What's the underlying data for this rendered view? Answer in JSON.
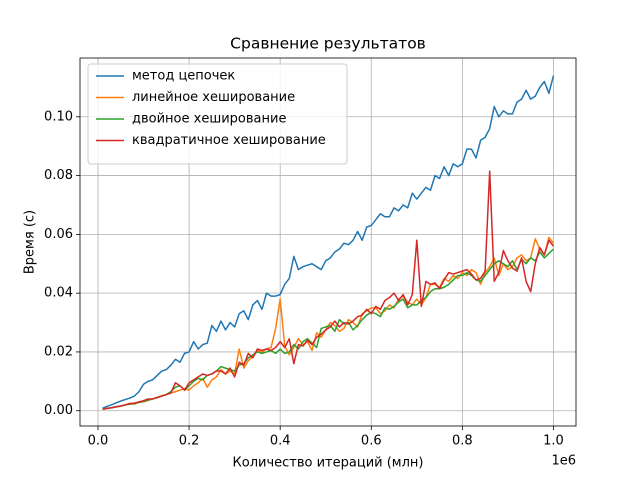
{
  "chart_data": {
    "type": "line",
    "title": "Сравнение результатов",
    "xlabel": "Количество итераций (млн)",
    "ylabel": "Время (с)",
    "x_offset_label": "1e6",
    "x": [
      10000,
      20000,
      30000,
      40000,
      50000,
      60000,
      70000,
      80000,
      90000,
      100000,
      110000,
      120000,
      130000,
      140000,
      150000,
      160000,
      170000,
      180000,
      190000,
      200000,
      210000,
      220000,
      230000,
      240000,
      250000,
      260000,
      270000,
      280000,
      290000,
      300000,
      310000,
      320000,
      330000,
      340000,
      350000,
      360000,
      370000,
      380000,
      390000,
      400000,
      410000,
      420000,
      430000,
      440000,
      450000,
      460000,
      470000,
      480000,
      490000,
      500000,
      510000,
      520000,
      530000,
      540000,
      550000,
      560000,
      570000,
      580000,
      590000,
      600000,
      610000,
      620000,
      630000,
      640000,
      650000,
      660000,
      670000,
      680000,
      690000,
      700000,
      710000,
      720000,
      730000,
      740000,
      750000,
      760000,
      770000,
      780000,
      790000,
      800000,
      810000,
      820000,
      830000,
      840000,
      850000,
      860000,
      870000,
      880000,
      890000,
      900000,
      910000,
      920000,
      930000,
      940000,
      950000,
      960000,
      970000,
      980000,
      990000,
      1000000
    ],
    "series": [
      {
        "name": "метод цепочек",
        "color": "#1f77b4",
        "values": [
          0.0008,
          0.0015,
          0.002,
          0.0027,
          0.0033,
          0.0038,
          0.0043,
          0.005,
          0.0065,
          0.009,
          0.01,
          0.0105,
          0.012,
          0.0135,
          0.014,
          0.0155,
          0.0175,
          0.0165,
          0.0195,
          0.02,
          0.0235,
          0.021,
          0.0225,
          0.023,
          0.029,
          0.027,
          0.0305,
          0.0275,
          0.03,
          0.0285,
          0.033,
          0.034,
          0.031,
          0.036,
          0.0375,
          0.0345,
          0.04,
          0.039,
          0.039,
          0.0395,
          0.043,
          0.045,
          0.0525,
          0.048,
          0.049,
          0.0495,
          0.05,
          0.049,
          0.048,
          0.051,
          0.052,
          0.054,
          0.055,
          0.057,
          0.0565,
          0.058,
          0.061,
          0.058,
          0.0625,
          0.063,
          0.065,
          0.067,
          0.066,
          0.066,
          0.069,
          0.068,
          0.07,
          0.069,
          0.074,
          0.072,
          0.074,
          0.076,
          0.075,
          0.08,
          0.079,
          0.083,
          0.08,
          0.084,
          0.083,
          0.084,
          0.089,
          0.089,
          0.086,
          0.092,
          0.093,
          0.096,
          0.1035,
          0.1,
          0.102,
          0.101,
          0.101,
          0.105,
          0.106,
          0.109,
          0.106,
          0.107,
          0.11,
          0.112,
          0.108,
          0.114
        ]
      },
      {
        "name": "линейное хеширование",
        "color": "#ff7f0e",
        "values": [
          0.0005,
          0.0008,
          0.001,
          0.0013,
          0.0015,
          0.002,
          0.0025,
          0.0022,
          0.003,
          0.003,
          0.0035,
          0.004,
          0.0045,
          0.005,
          0.0055,
          0.006,
          0.0065,
          0.007,
          0.0075,
          0.007,
          0.0085,
          0.0095,
          0.011,
          0.008,
          0.0105,
          0.0115,
          0.014,
          0.0125,
          0.0135,
          0.0125,
          0.021,
          0.0145,
          0.017,
          0.0185,
          0.0205,
          0.02,
          0.021,
          0.0215,
          0.028,
          0.038,
          0.022,
          0.019,
          0.0215,
          0.0245,
          0.0225,
          0.0235,
          0.0205,
          0.0265,
          0.025,
          0.0275,
          0.03,
          0.029,
          0.027,
          0.028,
          0.031,
          0.03,
          0.0285,
          0.033,
          0.034,
          0.035,
          0.035,
          0.033,
          0.034,
          0.036,
          0.035,
          0.038,
          0.039,
          0.037,
          0.036,
          0.038,
          0.036,
          0.0385,
          0.043,
          0.043,
          0.042,
          0.045,
          0.044,
          0.046,
          0.045,
          0.047,
          0.046,
          0.048,
          0.047,
          0.043,
          0.047,
          0.049,
          0.052,
          0.046,
          0.05,
          0.048,
          0.049,
          0.052,
          0.053,
          0.051,
          0.052,
          0.0585,
          0.055,
          0.053,
          0.059,
          0.057
        ]
      },
      {
        "name": "двойное хеширование",
        "color": "#2ca02c",
        "values": [
          0.0005,
          0.0008,
          0.001,
          0.0013,
          0.0016,
          0.002,
          0.0022,
          0.0025,
          0.0028,
          0.0032,
          0.0036,
          0.004,
          0.0045,
          0.005,
          0.0055,
          0.0065,
          0.008,
          0.0085,
          0.007,
          0.0085,
          0.01,
          0.011,
          0.0105,
          0.012,
          0.0125,
          0.0135,
          0.015,
          0.0145,
          0.014,
          0.0135,
          0.0155,
          0.016,
          0.018,
          0.019,
          0.02,
          0.0195,
          0.02,
          0.0205,
          0.0195,
          0.021,
          0.0195,
          0.02,
          0.0225,
          0.021,
          0.0235,
          0.0245,
          0.023,
          0.0215,
          0.028,
          0.0285,
          0.029,
          0.027,
          0.031,
          0.0295,
          0.03,
          0.0275,
          0.029,
          0.031,
          0.0325,
          0.0335,
          0.033,
          0.032,
          0.035,
          0.0345,
          0.0355,
          0.037,
          0.038,
          0.035,
          0.036,
          0.036,
          0.0375,
          0.0385,
          0.0405,
          0.0415,
          0.0415,
          0.042,
          0.043,
          0.0445,
          0.046,
          0.046,
          0.047,
          0.046,
          0.0445,
          0.044,
          0.046,
          0.048,
          0.05,
          0.051,
          0.05,
          0.049,
          0.051,
          0.048,
          0.0515,
          0.05,
          0.052,
          0.051,
          0.054,
          0.052,
          0.0535,
          0.055
        ]
      },
      {
        "name": "квадратичное хеширование",
        "color": "#d62728",
        "values": [
          0.0005,
          0.0008,
          0.001,
          0.0014,
          0.0016,
          0.002,
          0.0024,
          0.0026,
          0.003,
          0.0034,
          0.004,
          0.004,
          0.0045,
          0.005,
          0.0055,
          0.006,
          0.0095,
          0.0085,
          0.007,
          0.0095,
          0.0105,
          0.0115,
          0.0125,
          0.012,
          0.0125,
          0.0135,
          0.0135,
          0.0125,
          0.0145,
          0.0115,
          0.0165,
          0.0155,
          0.0195,
          0.018,
          0.021,
          0.0205,
          0.021,
          0.0205,
          0.0215,
          0.0235,
          0.0215,
          0.0245,
          0.016,
          0.0225,
          0.022,
          0.024,
          0.0225,
          0.025,
          0.026,
          0.0275,
          0.0285,
          0.0305,
          0.0285,
          0.03,
          0.0295,
          0.0305,
          0.032,
          0.0325,
          0.0345,
          0.033,
          0.0355,
          0.0345,
          0.0375,
          0.0385,
          0.04,
          0.0375,
          0.0395,
          0.036,
          0.0395,
          0.058,
          0.0355,
          0.044,
          0.043,
          0.0435,
          0.0415,
          0.0445,
          0.047,
          0.0465,
          0.047,
          0.0475,
          0.048,
          0.0465,
          0.0445,
          0.045,
          0.0475,
          0.0815,
          0.044,
          0.047,
          0.0545,
          0.051,
          0.0485,
          0.0475,
          0.052,
          0.044,
          0.0405,
          0.05,
          0.0555,
          0.053,
          0.058,
          0.056
        ]
      }
    ],
    "xlim": [
      -39500,
      1049500
    ],
    "ylim": [
      -0.0052,
      0.12
    ],
    "xticks": [
      {
        "value": 0,
        "label": "0.0"
      },
      {
        "value": 200000,
        "label": "0.2"
      },
      {
        "value": 400000,
        "label": "0.4"
      },
      {
        "value": 600000,
        "label": "0.6"
      },
      {
        "value": 800000,
        "label": "0.8"
      },
      {
        "value": 1000000,
        "label": "1.0"
      }
    ],
    "yticks": [
      {
        "value": 0,
        "label": "0.00"
      },
      {
        "value": 0.02,
        "label": "0.02"
      },
      {
        "value": 0.04,
        "label": "0.04"
      },
      {
        "value": 0.06,
        "label": "0.06"
      },
      {
        "value": 0.08,
        "label": "0.08"
      },
      {
        "value": 0.1,
        "label": "0.10"
      }
    ],
    "grid": true,
    "legend": "upper-left"
  }
}
